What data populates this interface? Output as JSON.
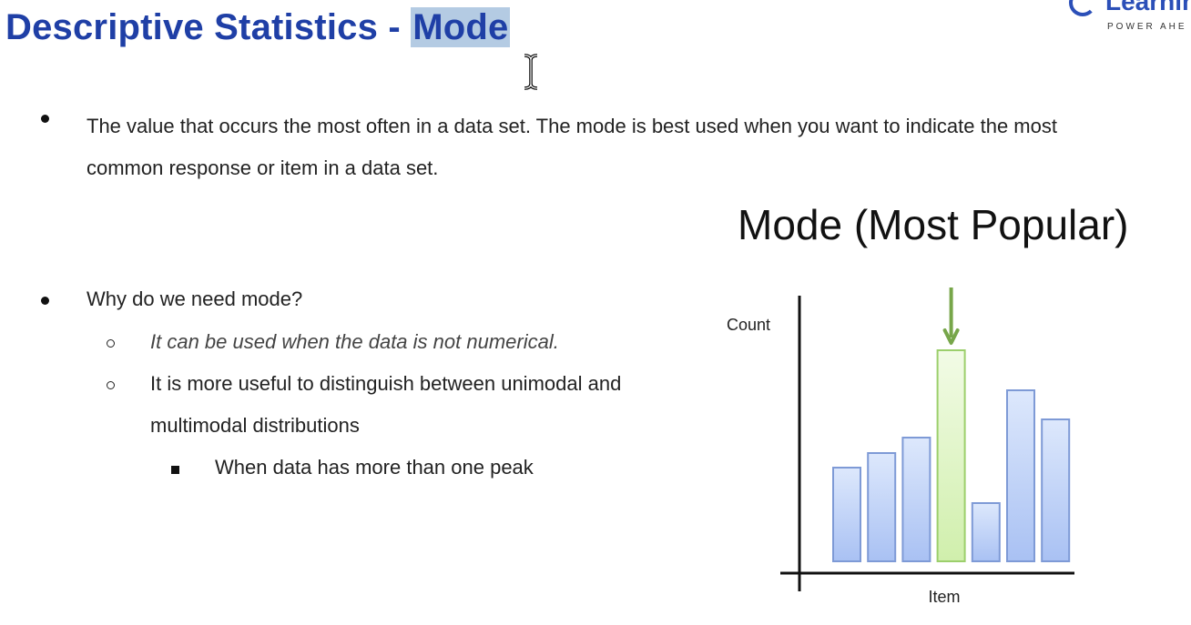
{
  "slide": {
    "title_prefix": "Descriptive Statistics - ",
    "title_highlight": "Mode",
    "logo_text": "Learnin",
    "logo_tagline": "POWER AHE",
    "bullet1": "The value that occurs the most often in a data set. The mode is best used when you want to indicate the most common response or item in a data set.",
    "bullet2": "Why do we need mode?",
    "sub1": "It can be used when the data is not numerical.",
    "sub2_line1": "It is more useful to distinguish between unimodal and",
    "sub2_line2": "multimodal distributions",
    "subsub1": "When data has more than one peak"
  },
  "chart_data": {
    "type": "bar",
    "title": "Mode (Most Popular)",
    "xlabel": "Item",
    "ylabel": "Count",
    "categories": [
      "",
      "",
      "",
      "",
      "",
      "",
      ""
    ],
    "values": [
      103,
      119,
      136,
      232,
      64,
      188,
      156
    ],
    "highlight_index": 3,
    "ylim": [
      0,
      300
    ],
    "grid": false,
    "colors": {
      "bar": "#bcd0f7",
      "bar_stroke": "#7e9ad6",
      "highlight": "#dcf5bd",
      "highlight_stroke": "#9ccf6c",
      "arrow": "#77a64a"
    }
  }
}
